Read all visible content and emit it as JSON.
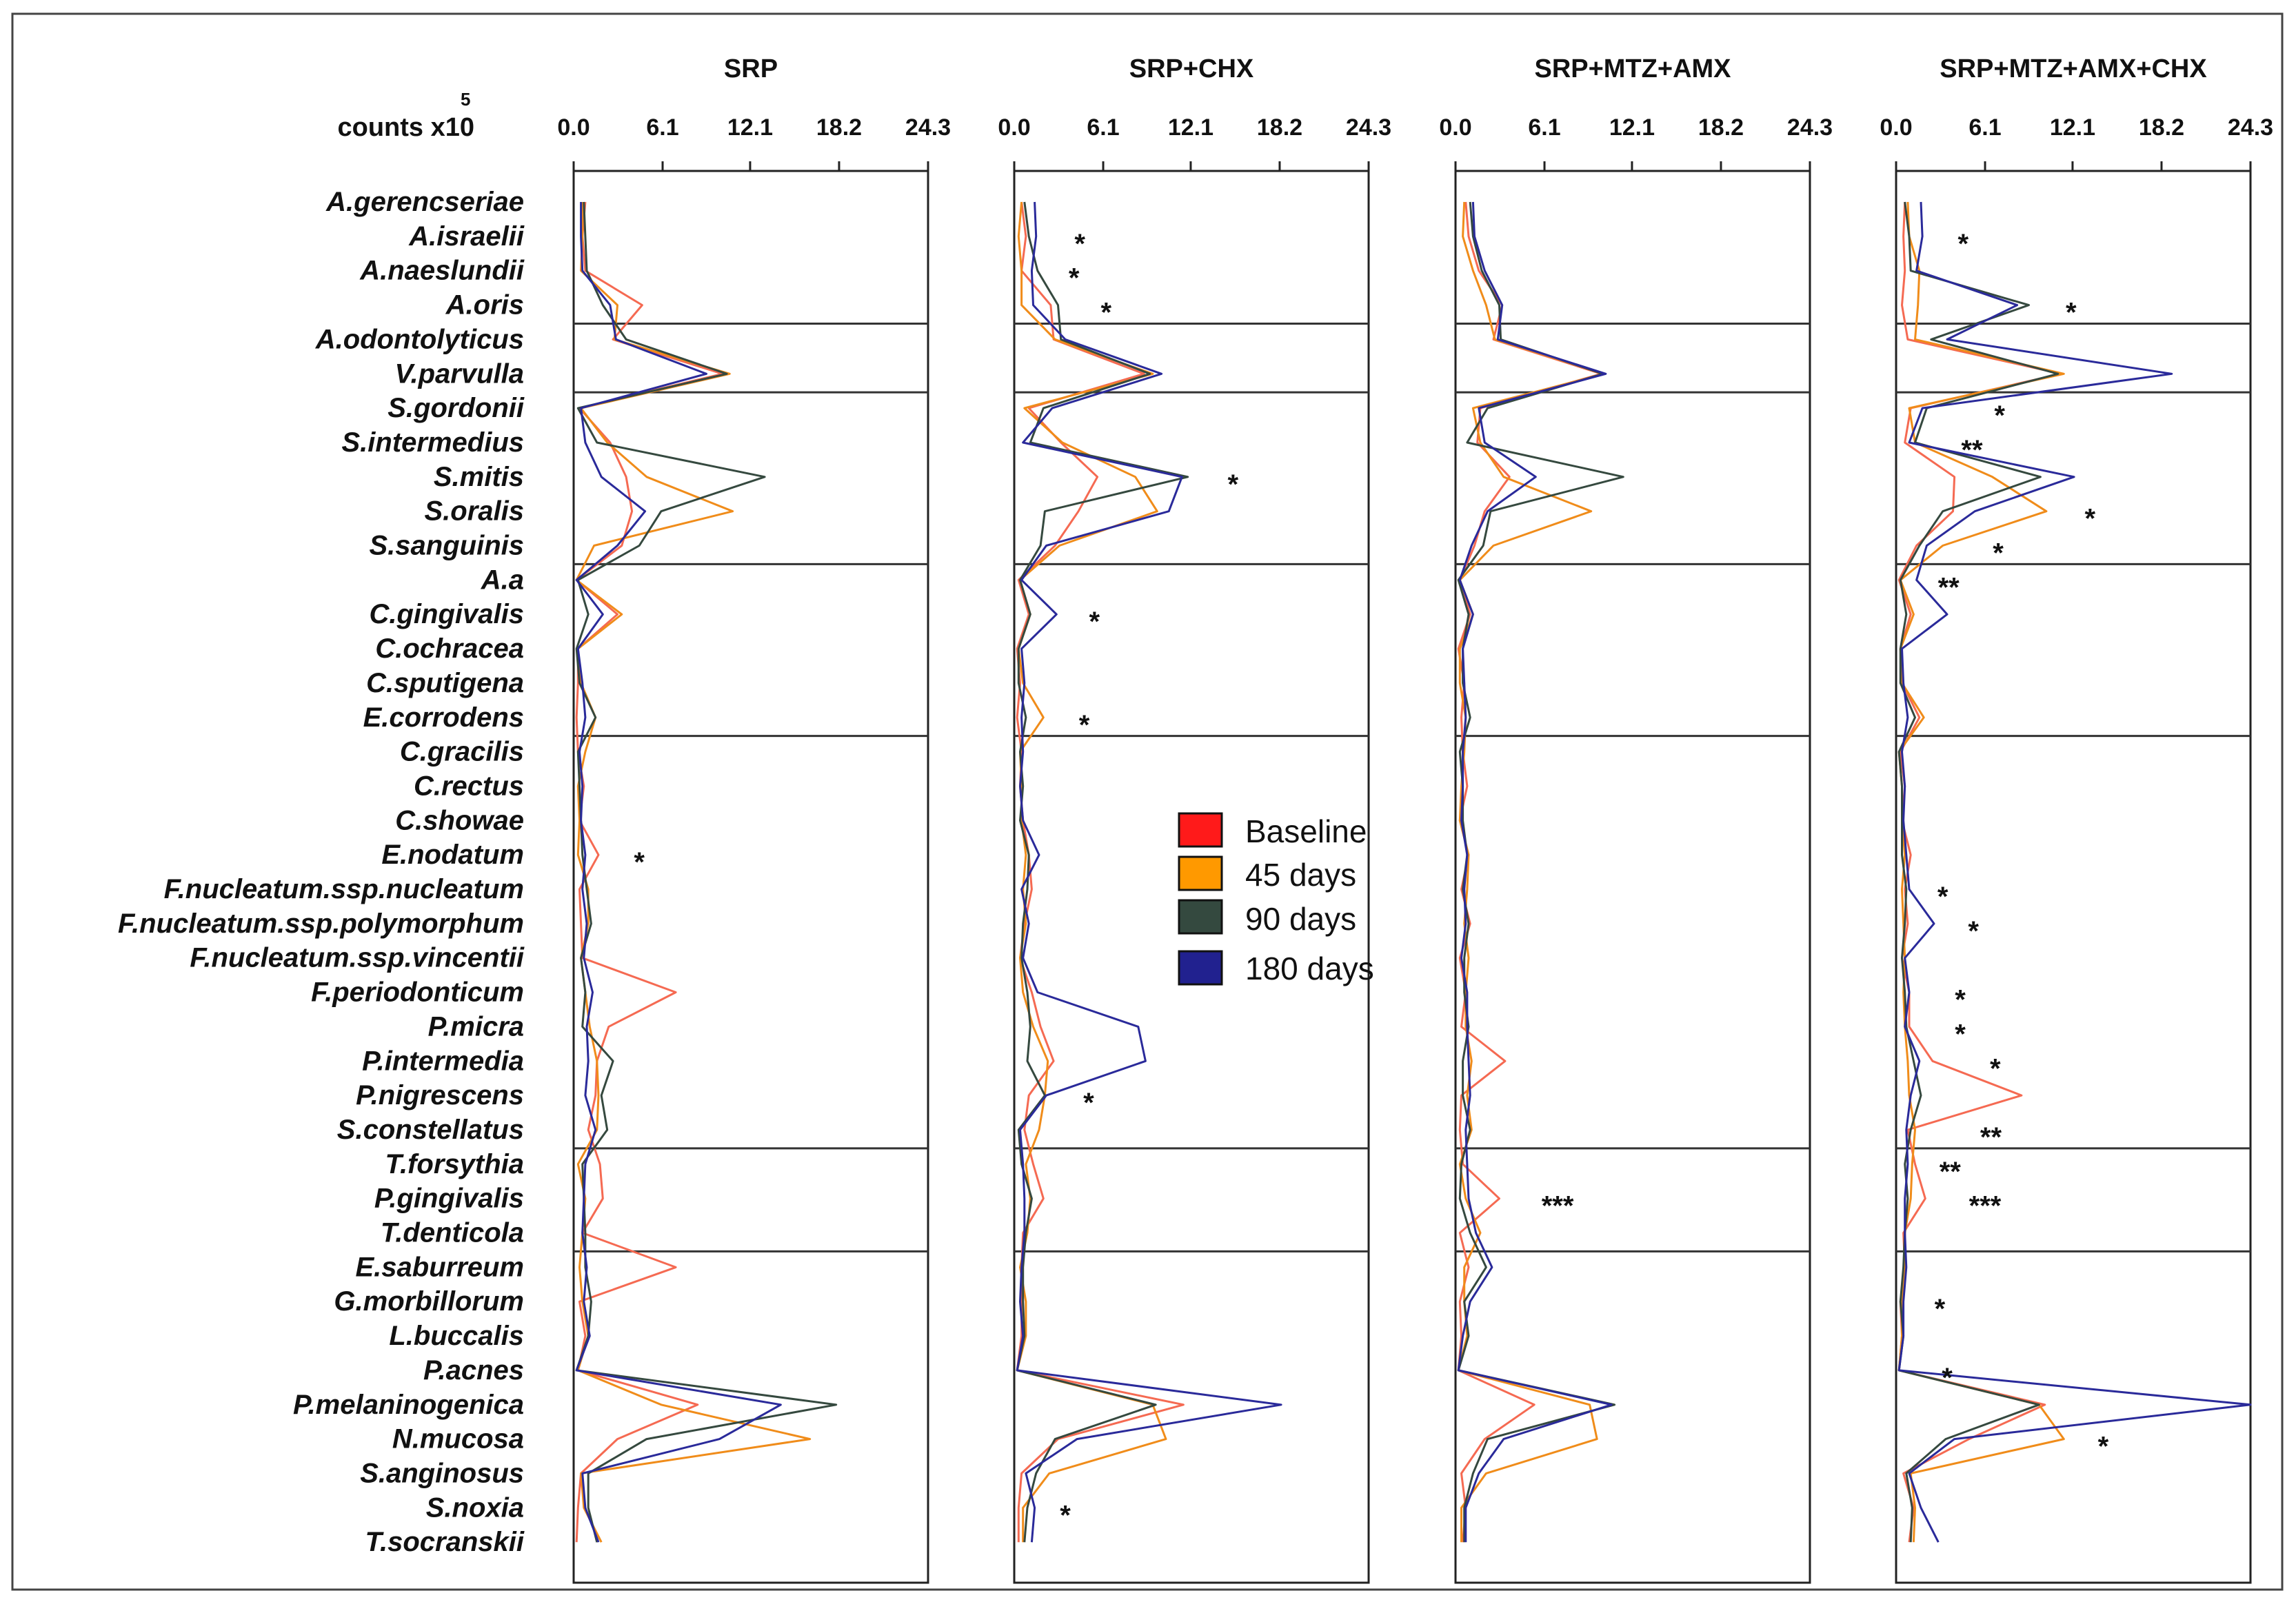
{
  "chart_data": {
    "type": "line",
    "orientation": "vertical-profile",
    "ylabel": "counts x10",
    "ylabel_superscript": "5",
    "xlim": [
      0,
      24.3
    ],
    "x_ticks": [
      "0.0",
      "6.1",
      "12.1",
      "18.2",
      "24.3"
    ],
    "x_tick_values": [
      0,
      6.1,
      12.1,
      18.2,
      24.3
    ],
    "species": [
      "A.gerencseriae",
      "A.israelii",
      "A.naeslundii",
      "A.oris",
      "A.odontolyticus",
      "V.parvulla",
      "S.gordonii",
      "S.intermedius",
      "S.mitis",
      "S.oralis",
      "S.sanguinis",
      "A.a",
      "C.gingivalis",
      "C.ochracea",
      "C.sputigena",
      "E.corrodens",
      "C.gracilis",
      "C.rectus",
      "C.showae",
      "E.nodatum",
      "F.nucleatum.ssp.nucleatum",
      "F.nucleatum.ssp.polymorphum",
      "F.nucleatum.ssp.vincentii",
      "F.periodonticum",
      "P.micra",
      "P.intermedia",
      "P.nigrescens",
      "S.constellatus",
      "T.forsythia",
      "P.gingivalis",
      "T.denticola",
      "E.saburreum",
      "G.morbillorum",
      "L.buccalis",
      "P.acnes",
      "P.melaninogenica",
      "N.mucosa",
      "S.anginosus",
      "S.noxia",
      "T.socranskii"
    ],
    "group_separators_after_index": [
      3,
      5,
      10,
      15,
      27,
      30
    ],
    "series_colors": {
      "Baseline": "#f56a52",
      "45 days": "#f08c1a",
      "90 days": "#35493f",
      "180 days": "#2a2a9a"
    },
    "legend": [
      {
        "label": "Baseline",
        "color": "#ff1a1a"
      },
      {
        "label": "45 days",
        "color": "#ff9900"
      },
      {
        "label": "90 days",
        "color": "#34493f"
      },
      {
        "label": "180 days",
        "color": "#21218f"
      }
    ],
    "panels": [
      {
        "title": "SRP",
        "series": [
          {
            "name": "Baseline",
            "values": [
              0.8,
              0.6,
              0.8,
              4.7,
              2.7,
              10.2,
              0.4,
              2.5,
              3.6,
              4.0,
              3.3,
              0.2,
              3.0,
              0.3,
              0.3,
              0.2,
              0.3,
              0.7,
              0.4,
              1.7,
              0.4,
              0.5,
              0.6,
              7.0,
              2.4,
              1.6,
              1.5,
              1.0,
              1.8,
              2.0,
              0.6,
              7.0,
              0.4,
              0.8,
              0.3,
              8.5,
              3.0,
              0.5,
              0.3,
              0.2
            ]
          },
          {
            "name": "45 days",
            "values": [
              0.6,
              0.6,
              0.5,
              3.0,
              2.8,
              10.7,
              0.5,
              2.3,
              5.0,
              10.9,
              1.4,
              0.2,
              3.3,
              0.3,
              0.5,
              1.5,
              0.8,
              0.3,
              0.4,
              0.3,
              1.0,
              1.0,
              0.5,
              0.8,
              1.1,
              1.6,
              1.7,
              1.6,
              0.3,
              0.8,
              0.6,
              0.4,
              0.6,
              1.0,
              0.3,
              6.0,
              16.2,
              0.5,
              0.7,
              1.9
            ]
          },
          {
            "name": "90 days",
            "values": [
              0.7,
              0.8,
              0.9,
              2.0,
              3.6,
              10.5,
              0.3,
              1.6,
              13.1,
              6.0,
              4.5,
              0.3,
              1.0,
              0.2,
              0.4,
              1.5,
              0.3,
              0.4,
              0.5,
              0.6,
              0.9,
              1.2,
              0.5,
              0.8,
              0.6,
              2.7,
              1.9,
              2.3,
              0.6,
              0.7,
              0.8,
              0.8,
              1.2,
              1.0,
              0.2,
              18.0,
              5.0,
              1.0,
              1.0,
              1.6
            ]
          },
          {
            "name": "180 days",
            "values": [
              0.5,
              0.5,
              0.6,
              2.5,
              2.9,
              9.1,
              0.5,
              0.8,
              1.9,
              4.9,
              3.0,
              0.2,
              2.0,
              0.3,
              0.6,
              0.8,
              0.4,
              0.6,
              0.5,
              0.8,
              0.6,
              0.9,
              0.7,
              1.3,
              0.9,
              1.0,
              0.8,
              1.5,
              0.8,
              0.7,
              0.6,
              0.9,
              0.7,
              1.1,
              0.2,
              14.2,
              10.0,
              0.6,
              0.8,
              1.7
            ]
          }
        ],
        "stars": [
          {
            "species_index": 19,
            "text": "*",
            "x_value": 4.5
          }
        ]
      },
      {
        "title": "SRP+CHX",
        "series": [
          {
            "name": "Baseline",
            "values": [
              0.5,
              0.8,
              0.5,
              2.5,
              2.7,
              8.9,
              1.0,
              3.2,
              5.7,
              4.4,
              2.8,
              0.3,
              1.0,
              0.2,
              0.4,
              0.2,
              0.5,
              0.4,
              0.6,
              1.0,
              1.2,
              0.7,
              0.4,
              1.2,
              1.8,
              2.7,
              1.0,
              0.7,
              1.3,
              2.0,
              0.6,
              0.5,
              0.5,
              0.5,
              0.2,
              11.6,
              3.0,
              0.5,
              0.3,
              0.3
            ]
          },
          {
            "name": "45 days",
            "values": [
              0.5,
              0.3,
              0.5,
              0.5,
              2.8,
              9.5,
              0.7,
              3.3,
              8.3,
              9.8,
              3.1,
              0.4,
              1.1,
              0.3,
              0.6,
              2.0,
              0.4,
              0.5,
              0.5,
              0.8,
              0.6,
              0.8,
              0.4,
              0.6,
              1.3,
              2.3,
              2.1,
              1.7,
              0.8,
              1.1,
              0.9,
              0.4,
              0.8,
              0.8,
              0.2,
              9.5,
              10.4,
              2.4,
              0.6,
              0.6
            ]
          },
          {
            "name": "90 days",
            "values": [
              0.7,
              1.0,
              1.6,
              3.0,
              3.2,
              9.3,
              2.0,
              1.1,
              11.9,
              2.1,
              1.8,
              0.4,
              1.1,
              0.3,
              0.3,
              0.8,
              0.4,
              0.6,
              0.4,
              1.0,
              0.9,
              0.6,
              0.5,
              0.9,
              1.1,
              0.9,
              2.1,
              0.3,
              0.5,
              1.2,
              0.8,
              0.6,
              0.6,
              0.7,
              0.2,
              9.7,
              2.8,
              1.5,
              0.9,
              0.7
            ]
          },
          {
            "name": "180 days",
            "values": [
              1.4,
              1.5,
              1.2,
              1.3,
              3.5,
              10.1,
              2.6,
              0.6,
              11.5,
              10.6,
              2.2,
              0.5,
              2.9,
              0.5,
              0.7,
              0.5,
              0.6,
              0.4,
              0.6,
              1.7,
              0.5,
              1.0,
              0.6,
              1.6,
              8.5,
              9.0,
              2.2,
              0.4,
              0.6,
              0.7,
              0.7,
              0.5,
              0.4,
              0.6,
              0.2,
              18.3,
              4.3,
              0.8,
              1.4,
              1.2
            ]
          }
        ],
        "stars": [
          {
            "species_index": 1,
            "text": "*",
            "x_value": 4.5
          },
          {
            "species_index": 2,
            "text": "*",
            "x_value": 4.1
          },
          {
            "species_index": 3,
            "text": "*",
            "x_value": 6.3
          },
          {
            "species_index": 8,
            "text": "*",
            "x_value": 15.0
          },
          {
            "species_index": 12,
            "text": "*",
            "x_value": 5.5
          },
          {
            "species_index": 15,
            "text": "*",
            "x_value": 4.8
          },
          {
            "species_index": 26,
            "text": "*",
            "x_value": 5.1
          },
          {
            "species_index": 38,
            "text": "*",
            "x_value": 3.5
          }
        ]
      },
      {
        "title": "SRP+MTZ+AMX",
        "series": [
          {
            "name": "Baseline",
            "values": [
              0.7,
              0.9,
              1.6,
              3.2,
              2.6,
              10.0,
              1.7,
              1.5,
              3.7,
              2.0,
              1.3,
              0.3,
              1.0,
              0.2,
              0.6,
              0.4,
              0.5,
              0.8,
              0.3,
              0.9,
              0.4,
              1.0,
              0.3,
              0.7,
              0.4,
              3.4,
              0.4,
              0.3,
              0.5,
              3.0,
              0.3,
              0.9,
              0.3,
              0.4,
              0.2,
              5.4,
              2.0,
              0.4,
              0.7,
              0.5
            ]
          },
          {
            "name": "45 days",
            "values": [
              0.6,
              0.5,
              1.2,
              2.1,
              2.7,
              10.2,
              1.2,
              1.7,
              3.3,
              9.3,
              2.6,
              0.3,
              1.2,
              0.3,
              0.3,
              0.7,
              0.6,
              0.4,
              0.3,
              0.9,
              0.8,
              0.6,
              0.9,
              0.7,
              0.7,
              1.1,
              0.8,
              1.1,
              0.3,
              0.7,
              1.7,
              0.6,
              0.6,
              0.8,
              0.2,
              9.2,
              9.7,
              2.1,
              0.4,
              0.4
            ]
          },
          {
            "name": "90 days",
            "values": [
              1.0,
              1.2,
              1.8,
              3.0,
              3.1,
              10.1,
              2.2,
              0.8,
              11.5,
              2.4,
              1.9,
              0.2,
              0.9,
              0.5,
              0.5,
              1.0,
              0.3,
              0.5,
              0.5,
              0.8,
              0.5,
              0.9,
              0.6,
              0.6,
              0.9,
              0.5,
              0.5,
              1.0,
              0.4,
              0.3,
              1.0,
              2.1,
              0.6,
              0.9,
              0.2,
              10.9,
              2.2,
              1.2,
              0.6,
              0.6
            ]
          },
          {
            "name": "180 days",
            "values": [
              1.2,
              1.3,
              2.0,
              3.2,
              2.9,
              10.3,
              1.6,
              2.0,
              5.5,
              2.2,
              1.1,
              0.3,
              1.2,
              0.5,
              0.6,
              0.7,
              0.5,
              0.5,
              0.4,
              0.8,
              0.6,
              0.7,
              0.4,
              0.8,
              0.8,
              0.9,
              1.0,
              0.7,
              0.8,
              0.9,
              1.4,
              2.5,
              1.0,
              0.5,
              0.2,
              10.7,
              3.3,
              1.6,
              0.7,
              0.7
            ]
          }
        ],
        "stars": [
          {
            "species_index": 29,
            "text": "***",
            "x_value": 7.0
          }
        ]
      },
      {
        "title": "SRP+MTZ+AMX+CHX",
        "series": [
          {
            "name": "Baseline",
            "values": [
              0.6,
              0.5,
              0.6,
              0.4,
              0.8,
              11.3,
              1.0,
              0.6,
              4.0,
              3.9,
              1.4,
              0.2,
              1.0,
              0.3,
              0.4,
              1.6,
              0.3,
              0.6,
              0.4,
              1.0,
              0.6,
              0.8,
              0.4,
              0.9,
              0.9,
              2.5,
              8.6,
              0.8,
              1.3,
              2.0,
              0.5,
              0.6,
              0.3,
              0.4,
              0.2,
              10.2,
              5.0,
              0.5,
              1.2,
              0.9
            ]
          },
          {
            "name": "45 days",
            "values": [
              0.8,
              0.9,
              1.6,
              1.5,
              1.3,
              11.5,
              0.9,
              1.3,
              6.6,
              10.3,
              3.2,
              0.3,
              1.2,
              0.3,
              0.4,
              1.9,
              0.2,
              0.4,
              0.4,
              0.6,
              0.4,
              0.5,
              0.6,
              0.5,
              0.6,
              0.8,
              0.9,
              1.3,
              1.1,
              1.0,
              0.6,
              0.6,
              0.4,
              0.4,
              0.2,
              9.8,
              11.5,
              1.0,
              1.3,
              1.2
            ]
          },
          {
            "name": "90 days",
            "values": [
              0.6,
              0.9,
              1.0,
              9.1,
              2.4,
              11.1,
              2.1,
              1.3,
              9.9,
              3.2,
              1.6,
              0.3,
              0.7,
              0.3,
              0.3,
              1.3,
              0.2,
              0.4,
              0.4,
              0.4,
              0.7,
              0.6,
              0.4,
              0.6,
              0.7,
              1.2,
              1.7,
              1.0,
              0.6,
              0.8,
              0.6,
              0.5,
              0.3,
              0.5,
              0.2,
              9.8,
              3.4,
              0.7,
              1.1,
              1.0
            ]
          },
          {
            "name": "180 days",
            "values": [
              1.7,
              1.8,
              1.4,
              8.3,
              3.5,
              18.9,
              1.8,
              0.9,
              12.2,
              5.4,
              2.1,
              1.4,
              3.5,
              0.4,
              0.5,
              0.8,
              0.4,
              0.6,
              0.5,
              0.7,
              0.9,
              2.6,
              0.6,
              0.9,
              0.6,
              1.6,
              1.0,
              0.7,
              0.8,
              0.6,
              0.6,
              0.7,
              0.5,
              0.5,
              0.2,
              24.3,
              4.0,
              0.9,
              1.7,
              2.9
            ]
          }
        ],
        "stars": [
          {
            "species_index": 1,
            "text": "*",
            "x_value": 4.6
          },
          {
            "species_index": 3,
            "text": "*",
            "x_value": 12.0
          },
          {
            "species_index": 6,
            "text": "*",
            "x_value": 7.1
          },
          {
            "species_index": 7,
            "text": "**",
            "x_value": 5.2
          },
          {
            "species_index": 9,
            "text": "*",
            "x_value": 13.3
          },
          {
            "species_index": 10,
            "text": "*",
            "x_value": 7.0
          },
          {
            "species_index": 11,
            "text": "**",
            "x_value": 3.6
          },
          {
            "species_index": 20,
            "text": "*",
            "x_value": 3.2
          },
          {
            "species_index": 21,
            "text": "*",
            "x_value": 5.3
          },
          {
            "species_index": 23,
            "text": "*",
            "x_value": 4.4
          },
          {
            "species_index": 24,
            "text": "*",
            "x_value": 4.4
          },
          {
            "species_index": 25,
            "text": "*",
            "x_value": 6.8
          },
          {
            "species_index": 27,
            "text": "**",
            "x_value": 6.5
          },
          {
            "species_index": 28,
            "text": "**",
            "x_value": 3.7
          },
          {
            "species_index": 29,
            "text": "***",
            "x_value": 6.1
          },
          {
            "species_index": 32,
            "text": "*",
            "x_value": 3.0
          },
          {
            "species_index": 34,
            "text": "*",
            "x_value": 3.5
          },
          {
            "species_index": 36,
            "text": "*",
            "x_value": 14.2
          }
        ]
      }
    ]
  }
}
